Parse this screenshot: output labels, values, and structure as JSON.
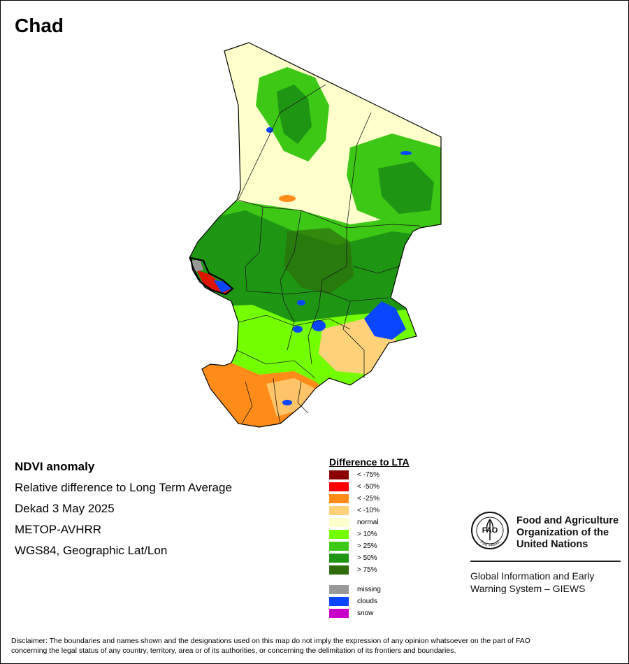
{
  "title": "Chad",
  "info": {
    "line1": "NDVI anomaly",
    "line2": "Relative difference to Long Term Average",
    "line3": "Dekad 3 May 2025",
    "line4": "METOP-AVHRR",
    "line5": "WGS84, Geographic Lat/Lon"
  },
  "legend": {
    "title": "Difference to LTA",
    "items": [
      {
        "label": "< -75%",
        "color": "#8b0000"
      },
      {
        "label": "< -50%",
        "color": "#ff0000"
      },
      {
        "label": "< -25%",
        "color": "#ff8c19"
      },
      {
        "label": "< -10%",
        "color": "#ffd27a"
      },
      {
        "label": "normal",
        "color": "#ffffcc"
      },
      {
        "label": "> 10%",
        "color": "#73ff00"
      },
      {
        "label": "> 25%",
        "color": "#3cc814"
      },
      {
        "label": "> 50%",
        "color": "#1e9614"
      },
      {
        "label": "> 75%",
        "color": "#2d6e0a"
      }
    ],
    "extra": [
      {
        "label": "missing",
        "color": "#999999"
      },
      {
        "label": "clouds",
        "color": "#0a46ff"
      },
      {
        "label": "snow",
        "color": "#c800c8"
      }
    ]
  },
  "fao": {
    "name_line1": "Food and Agriculture",
    "name_line2": "Organization of the",
    "name_line3": "United Nations",
    "emblem_text": "FAO",
    "emblem_motto": "FIAT PANIS",
    "giews_line1": "Global Information and Early",
    "giews_line2": "Warning System – GIEWS"
  },
  "disclaimer": {
    "line1": "Disclaimer: The boundaries and names shown and the designations used on this map do not imply the expression of any opinion whatsoever on the part of FAO",
    "line2": "concerning the legal status of any country, territory, area or of its authorities, or concerning the delimitation of its frontiers and boundaries."
  }
}
